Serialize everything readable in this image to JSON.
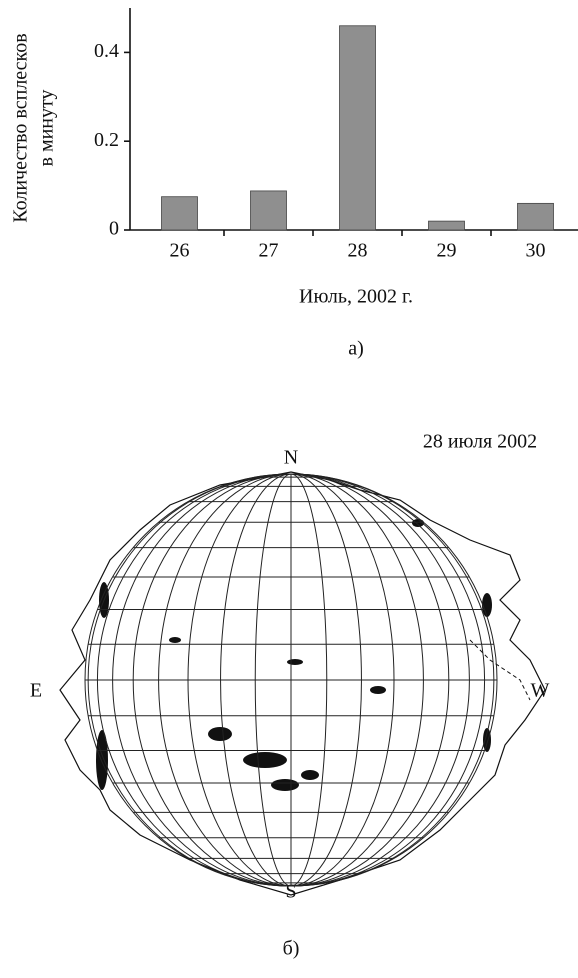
{
  "chart_data": {
    "type": "bar",
    "ylabel": [
      "Количество всплесков",
      "в минуту"
    ],
    "xlabel": "Июль, 2002 г.",
    "caption": "а)",
    "categories": [
      "26",
      "27",
      "28",
      "29",
      "30"
    ],
    "values": [
      0.075,
      0.088,
      0.46,
      0.02,
      0.06
    ],
    "color": "#8f8f8f",
    "ylim": [
      0,
      0.5
    ],
    "yticks": [
      0,
      0.2,
      0.4
    ],
    "grid": false
  },
  "map": {
    "title": "28 июля 2002",
    "north": "N",
    "south": "S",
    "east": "E",
    "west": "W",
    "caption": "б)"
  }
}
